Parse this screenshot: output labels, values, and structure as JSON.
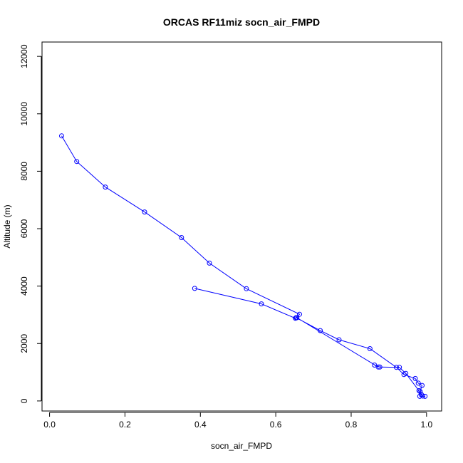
{
  "chart_data": {
    "type": "line",
    "title": "ORCAS RF11miz socn_air_FMPD",
    "xlabel": "socn_air_FMPD",
    "ylabel": "Altitude (m)",
    "xlim": [
      -0.02,
      1.04
    ],
    "ylim": [
      -350,
      12500
    ],
    "x_ticks": [
      0.0,
      0.2,
      0.4,
      0.6,
      0.8,
      1.0
    ],
    "x_tick_labels": [
      "0.0",
      "0.2",
      "0.4",
      "0.6",
      "0.8",
      "1.0"
    ],
    "y_ticks": [
      0,
      2000,
      4000,
      6000,
      8000,
      10000,
      12000
    ],
    "y_tick_labels": [
      "0",
      "2000",
      "4000",
      "6000",
      "8000",
      "10000",
      "12000"
    ],
    "grid": false,
    "series": [
      {
        "color": "#0000ff",
        "marker": "open-circle",
        "points": [
          [
            0.032,
            9230
          ],
          [
            0.072,
            8340
          ],
          [
            0.148,
            7450
          ],
          [
            0.252,
            6580
          ],
          [
            0.35,
            5690
          ],
          [
            0.424,
            4800
          ],
          [
            0.522,
            3910
          ],
          [
            0.663,
            3020
          ],
          [
            0.654,
            2900
          ],
          [
            0.718,
            2450
          ],
          [
            0.768,
            2130
          ],
          [
            0.85,
            1820
          ],
          [
            0.92,
            1170
          ],
          [
            0.94,
            920
          ],
          [
            0.97,
            780
          ],
          [
            0.978,
            620
          ],
          [
            0.988,
            540
          ],
          [
            0.983,
            330
          ],
          [
            0.986,
            230
          ],
          [
            0.99,
            170
          ],
          [
            0.996,
            160
          ],
          [
            0.982,
            160
          ],
          [
            0.98,
            360
          ],
          [
            0.945,
            960
          ],
          [
            0.928,
            1170
          ],
          [
            0.876,
            1180
          ],
          [
            0.862,
            1250
          ],
          [
            0.872,
            1180
          ],
          [
            0.656,
            2900
          ],
          [
            0.652,
            2880
          ],
          [
            0.562,
            3380
          ],
          [
            0.385,
            3920
          ]
        ]
      }
    ]
  }
}
